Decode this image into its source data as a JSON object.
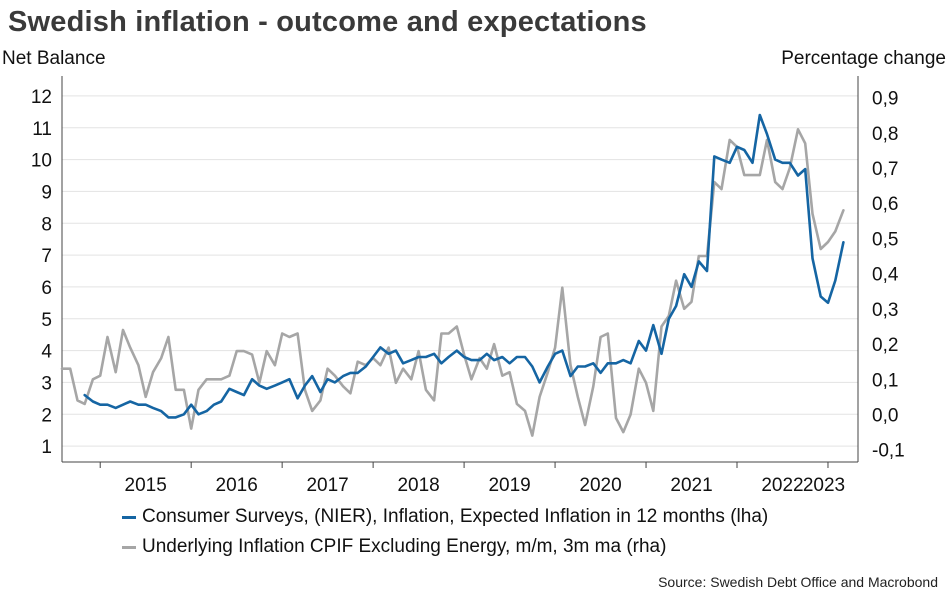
{
  "chart_data": {
    "type": "line",
    "title": "Swedish inflation - outcome and expectations",
    "ylabel_left": "Net Balance",
    "ylabel_right": "Percentage change",
    "source": "Source: Swedish Debt Office and Macrobond",
    "x_ticks": [
      "2015",
      "2016",
      "2017",
      "2018",
      "2019",
      "2020",
      "2021",
      "2022",
      "2023"
    ],
    "x_range": [
      2014.58,
      2023.33
    ],
    "y_left": {
      "min": 0.5,
      "max": 12.5,
      "ticks": [
        "1",
        "2",
        "3",
        "4",
        "5",
        "6",
        "7",
        "8",
        "9",
        "10",
        "11",
        "12"
      ]
    },
    "y_right": {
      "min": -0.135,
      "max": 0.95,
      "ticks": [
        "-0,1",
        "0,0",
        "0,1",
        "0,2",
        "0,3",
        "0,4",
        "0,5",
        "0,6",
        "0,7",
        "0,8",
        "0,9"
      ]
    },
    "grid": true,
    "legend_position": "bottom",
    "series": [
      {
        "name": "Consumer Surveys, (NIER), Inflation, Expected Inflation in 12 months (lha)",
        "axis": "left",
        "color": "#1565a3",
        "x": [
          2014.83,
          2014.92,
          2015.0,
          2015.08,
          2015.17,
          2015.25,
          2015.33,
          2015.42,
          2015.5,
          2015.58,
          2015.67,
          2015.75,
          2015.83,
          2015.92,
          2016.0,
          2016.08,
          2016.17,
          2016.25,
          2016.33,
          2016.42,
          2016.5,
          2016.58,
          2016.67,
          2016.75,
          2016.83,
          2016.92,
          2017.0,
          2017.08,
          2017.17,
          2017.25,
          2017.33,
          2017.42,
          2017.5,
          2017.58,
          2017.67,
          2017.75,
          2017.83,
          2017.92,
          2018.0,
          2018.08,
          2018.17,
          2018.25,
          2018.33,
          2018.42,
          2018.5,
          2018.58,
          2018.67,
          2018.75,
          2018.83,
          2018.92,
          2019.0,
          2019.08,
          2019.17,
          2019.25,
          2019.33,
          2019.42,
          2019.5,
          2019.58,
          2019.67,
          2019.75,
          2019.83,
          2019.92,
          2020.0,
          2020.08,
          2020.17,
          2020.25,
          2020.33,
          2020.42,
          2020.5,
          2020.58,
          2020.67,
          2020.75,
          2020.83,
          2020.92,
          2021.0,
          2021.08,
          2021.17,
          2021.25,
          2021.33,
          2021.42,
          2021.5,
          2021.58,
          2021.67,
          2021.75,
          2021.83,
          2021.92,
          2022.0,
          2022.08,
          2022.17,
          2022.25,
          2022.33,
          2022.42,
          2022.5,
          2022.58,
          2022.67,
          2022.75,
          2022.83,
          2022.92,
          2023.0,
          2023.08,
          2023.17
        ],
        "values": [
          2.6,
          2.4,
          2.3,
          2.3,
          2.2,
          2.3,
          2.4,
          2.3,
          2.3,
          2.2,
          2.1,
          1.9,
          1.9,
          2.0,
          2.3,
          2.0,
          2.1,
          2.3,
          2.4,
          2.8,
          2.7,
          2.6,
          3.1,
          2.9,
          2.8,
          2.9,
          3.0,
          3.1,
          2.5,
          2.9,
          3.2,
          2.7,
          3.1,
          3.0,
          3.2,
          3.3,
          3.3,
          3.5,
          3.8,
          4.1,
          3.9,
          4.0,
          3.6,
          3.7,
          3.8,
          3.8,
          3.9,
          3.6,
          3.8,
          4.0,
          3.8,
          3.7,
          3.7,
          3.9,
          3.7,
          3.8,
          3.6,
          3.8,
          3.8,
          3.5,
          3.0,
          3.5,
          3.9,
          4.0,
          3.2,
          3.5,
          3.5,
          3.6,
          3.3,
          3.6,
          3.6,
          3.7,
          3.6,
          4.3,
          4.0,
          4.8,
          3.9,
          5.0,
          5.4,
          6.4,
          6.0,
          6.8,
          6.5,
          10.1,
          10.0,
          9.9,
          10.4,
          10.3,
          9.9,
          11.4,
          10.8,
          10.0,
          9.9,
          9.9,
          9.5,
          9.7,
          6.9,
          5.7,
          5.5,
          6.2,
          7.4
        ]
      },
      {
        "name": "Underlying Inflation CPIF Excluding Energy, m/m, 3m ma (rha)",
        "axis": "right",
        "color": "#a6a6a6",
        "x": [
          2014.58,
          2014.67,
          2014.75,
          2014.83,
          2014.92,
          2015.0,
          2015.08,
          2015.17,
          2015.25,
          2015.33,
          2015.42,
          2015.5,
          2015.58,
          2015.67,
          2015.75,
          2015.83,
          2015.92,
          2016.0,
          2016.08,
          2016.17,
          2016.25,
          2016.33,
          2016.42,
          2016.5,
          2016.58,
          2016.67,
          2016.75,
          2016.83,
          2016.92,
          2017.0,
          2017.08,
          2017.17,
          2017.25,
          2017.33,
          2017.42,
          2017.5,
          2017.58,
          2017.67,
          2017.75,
          2017.83,
          2017.92,
          2018.0,
          2018.08,
          2018.17,
          2018.25,
          2018.33,
          2018.42,
          2018.5,
          2018.58,
          2018.67,
          2018.75,
          2018.83,
          2018.92,
          2019.0,
          2019.08,
          2019.17,
          2019.25,
          2019.33,
          2019.42,
          2019.5,
          2019.58,
          2019.67,
          2019.75,
          2019.83,
          2019.92,
          2020.0,
          2020.08,
          2020.17,
          2020.25,
          2020.33,
          2020.42,
          2020.5,
          2020.58,
          2020.67,
          2020.75,
          2020.83,
          2020.92,
          2021.0,
          2021.08,
          2021.17,
          2021.25,
          2021.33,
          2021.42,
          2021.5,
          2021.58,
          2021.67,
          2021.75,
          2021.83,
          2021.92,
          2022.0,
          2022.08,
          2022.17,
          2022.25,
          2022.33,
          2022.42,
          2022.5,
          2022.58,
          2022.67,
          2022.75,
          2022.83,
          2022.92,
          2023.0,
          2023.08,
          2023.17
        ],
        "values": [
          0.13,
          0.13,
          0.04,
          0.03,
          0.1,
          0.11,
          0.22,
          0.12,
          0.24,
          0.19,
          0.14,
          0.05,
          0.12,
          0.16,
          0.22,
          0.07,
          0.07,
          -0.04,
          0.07,
          0.1,
          0.1,
          0.1,
          0.11,
          0.18,
          0.18,
          0.17,
          0.09,
          0.18,
          0.14,
          0.23,
          0.22,
          0.23,
          0.07,
          0.01,
          0.04,
          0.13,
          0.11,
          0.08,
          0.06,
          0.15,
          0.14,
          0.16,
          0.14,
          0.19,
          0.09,
          0.13,
          0.1,
          0.18,
          0.07,
          0.04,
          0.23,
          0.23,
          0.25,
          0.17,
          0.1,
          0.16,
          0.13,
          0.2,
          0.11,
          0.12,
          0.03,
          0.01,
          -0.06,
          0.05,
          0.12,
          0.19,
          0.36,
          0.14,
          0.05,
          -0.03,
          0.08,
          0.22,
          0.23,
          -0.01,
          -0.05,
          0.0,
          0.13,
          0.09,
          0.01,
          0.25,
          0.28,
          0.38,
          0.3,
          0.32,
          0.45,
          0.45,
          0.66,
          0.64,
          0.78,
          0.76,
          0.68,
          0.68,
          0.68,
          0.78,
          0.66,
          0.64,
          0.7,
          0.81,
          0.77,
          0.57,
          0.47,
          0.49,
          0.52,
          0.58
        ]
      }
    ]
  }
}
